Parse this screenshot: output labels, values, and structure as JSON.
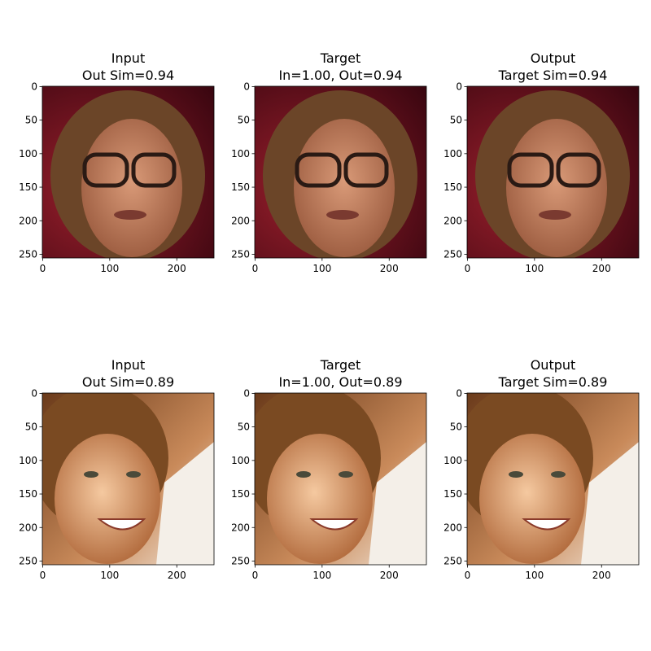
{
  "chart_data": [
    {
      "type": "image",
      "title": [
        "Input",
        "Out Sim=0.94"
      ],
      "xlim": [
        -0.5,
        255.5
      ],
      "ylim": [
        255.5,
        -0.5
      ],
      "xticks": [
        0,
        100,
        200
      ],
      "yticks": [
        0,
        50,
        100,
        150,
        200,
        250
      ]
    },
    {
      "type": "image",
      "title": [
        "Target",
        "In=1.00, Out=0.94"
      ],
      "xlim": [
        -0.5,
        255.5
      ],
      "ylim": [
        255.5,
        -0.5
      ],
      "xticks": [
        0,
        100,
        200
      ],
      "yticks": [
        0,
        50,
        100,
        150,
        200,
        250
      ]
    },
    {
      "type": "image",
      "title": [
        "Output",
        "Target Sim=0.94"
      ],
      "xlim": [
        -0.5,
        255.5
      ],
      "ylim": [
        255.5,
        -0.5
      ],
      "xticks": [
        0,
        100,
        200
      ],
      "yticks": [
        0,
        50,
        100,
        150,
        200,
        250
      ]
    },
    {
      "type": "image",
      "title": [
        "Input",
        "Out Sim=0.89"
      ],
      "xlim": [
        -0.5,
        255.5
      ],
      "ylim": [
        255.5,
        -0.5
      ],
      "xticks": [
        0,
        100,
        200
      ],
      "yticks": [
        0,
        50,
        100,
        150,
        200,
        250
      ]
    },
    {
      "type": "image",
      "title": [
        "Target",
        "In=1.00, Out=0.89"
      ],
      "xlim": [
        -0.5,
        255.5
      ],
      "ylim": [
        255.5,
        -0.5
      ],
      "xticks": [
        0,
        100,
        200
      ],
      "yticks": [
        0,
        50,
        100,
        150,
        200,
        250
      ]
    },
    {
      "type": "image",
      "title": [
        "Output",
        "Target Sim=0.89"
      ],
      "xlim": [
        -0.5,
        255.5
      ],
      "ylim": [
        255.5,
        -0.5
      ],
      "xticks": [
        0,
        100,
        200
      ],
      "yticks": [
        0,
        50,
        100,
        150,
        200,
        250
      ]
    }
  ]
}
